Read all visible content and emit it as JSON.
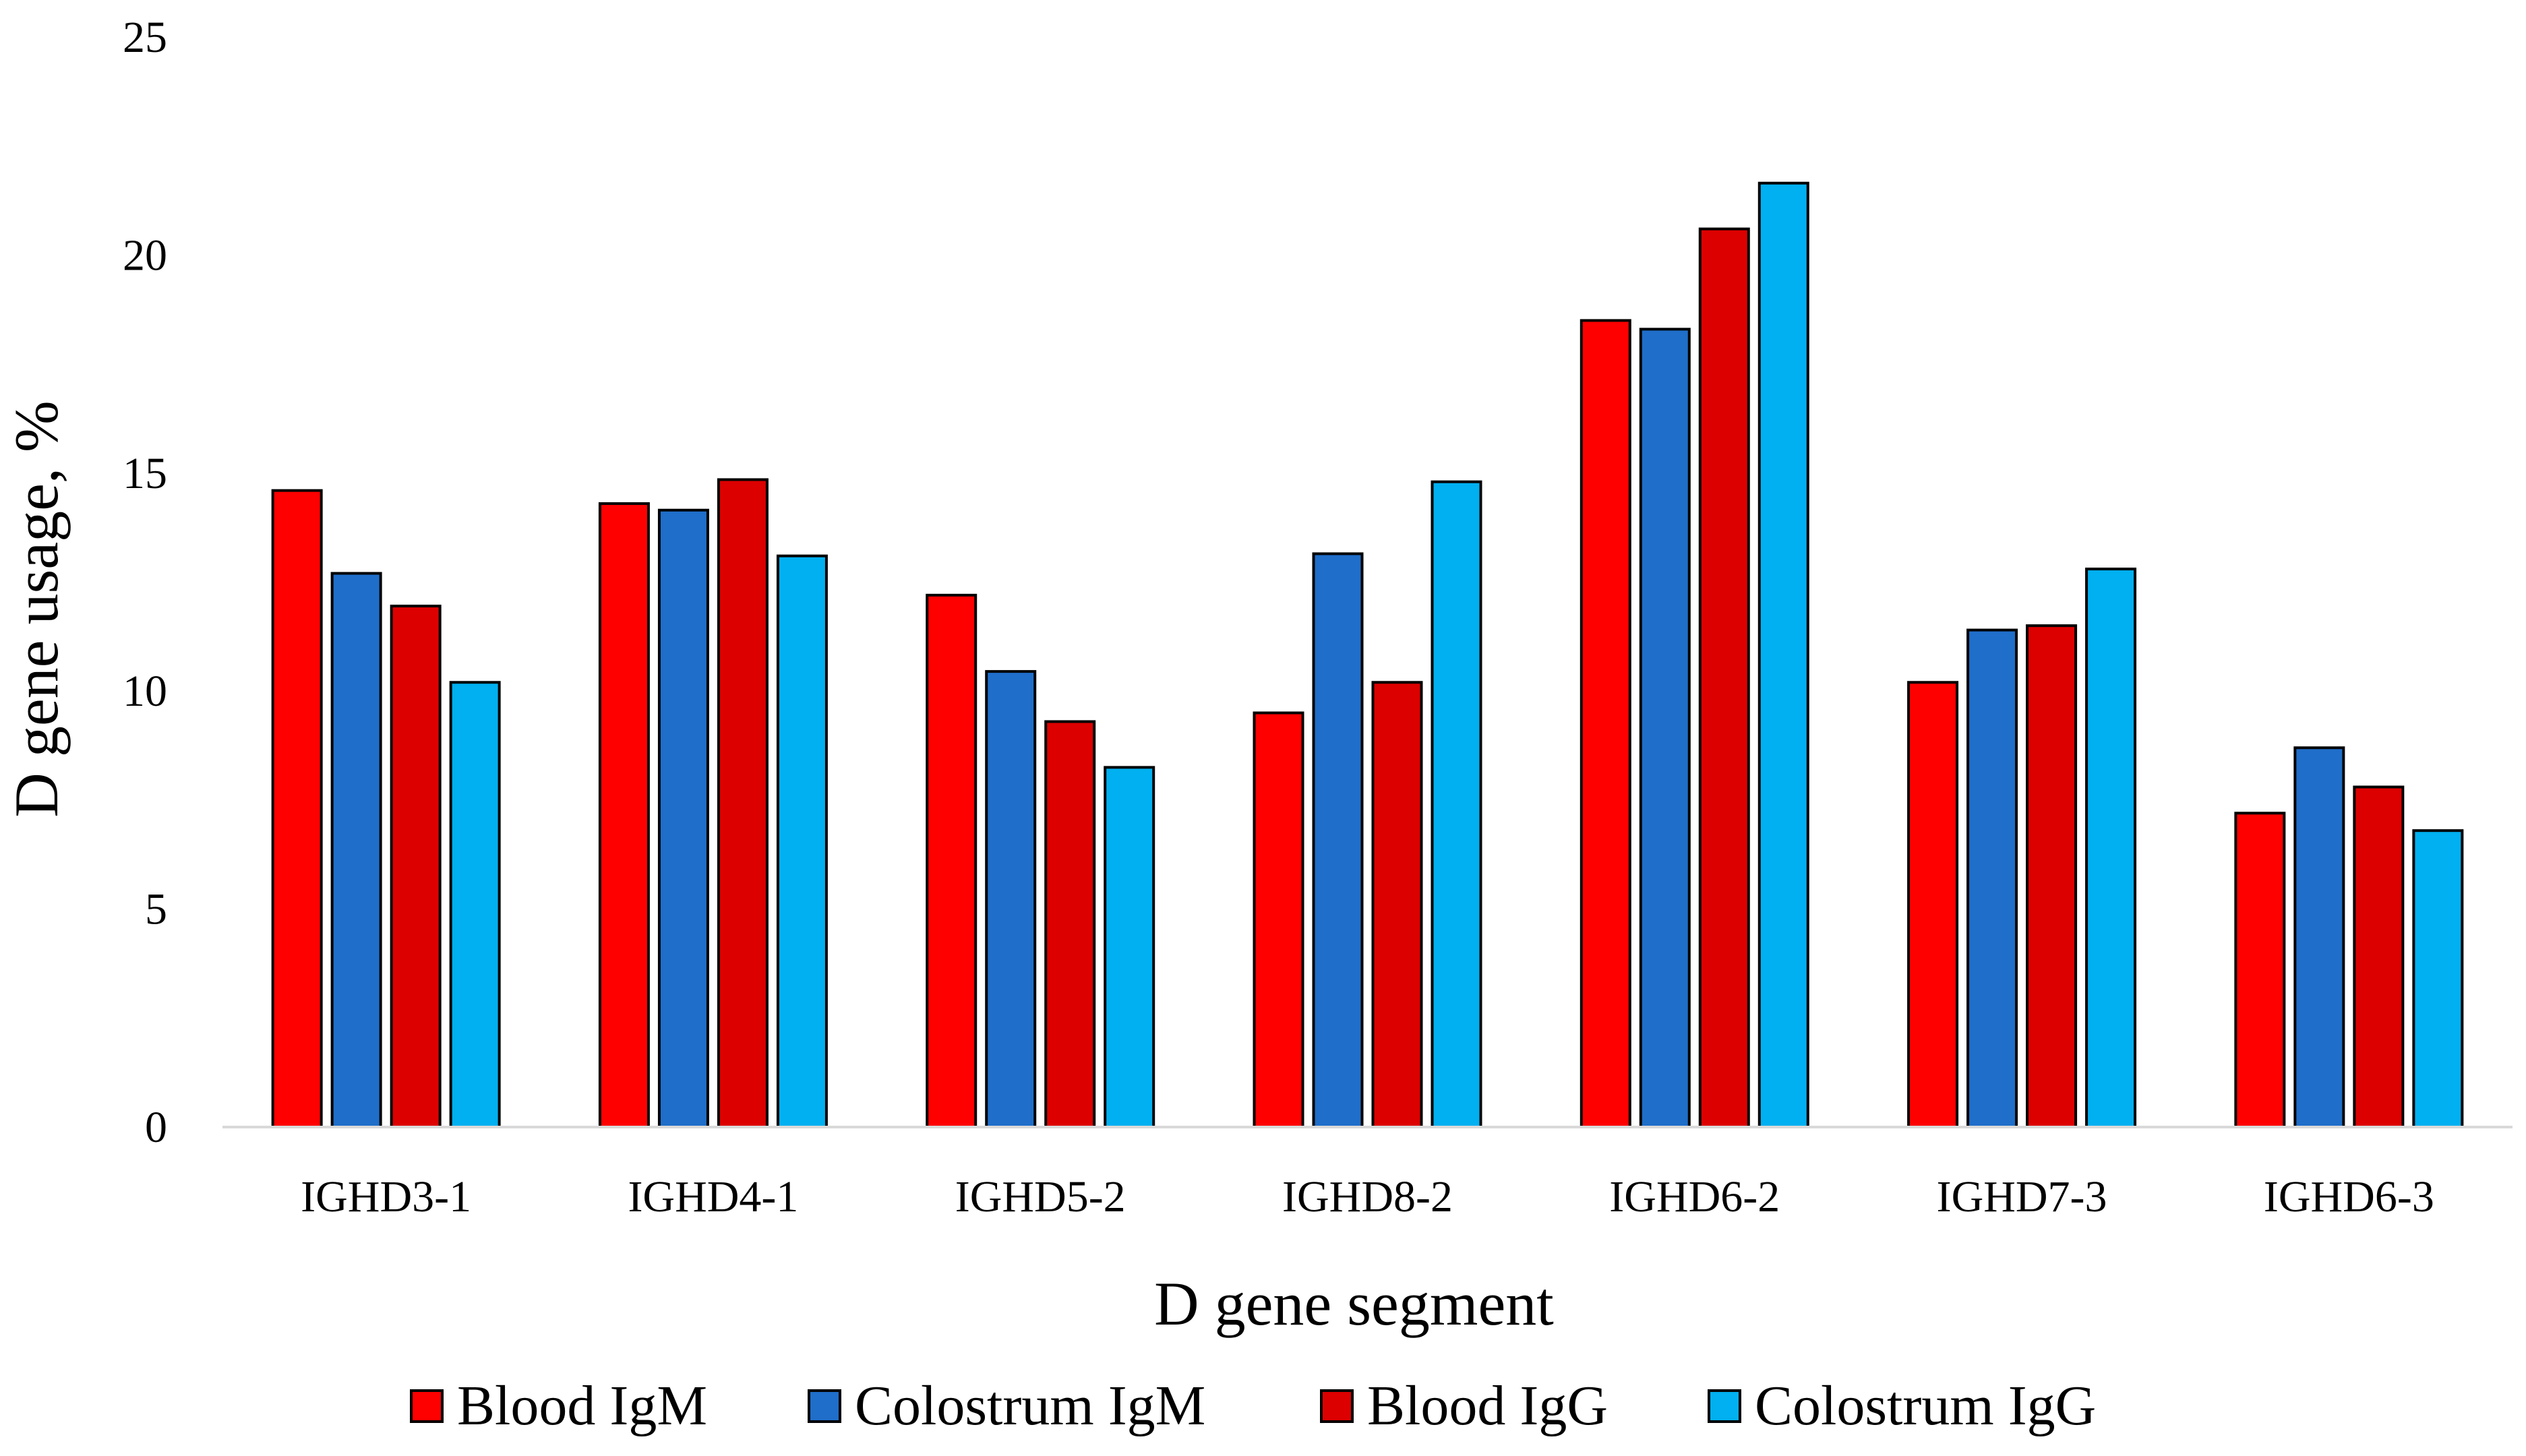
{
  "chart_data": {
    "type": "bar",
    "title": "",
    "xlabel": "D gene segment",
    "ylabel": "D gene usage, %",
    "ylim": [
      0,
      25
    ],
    "yticks": [
      "0",
      "5",
      "10",
      "15",
      "20",
      "25"
    ],
    "categories": [
      "IGHD3-1",
      "IGHD4-1",
      "IGHD5-2",
      "IGHD8-2",
      "IGHD6-2",
      "IGHD7-3",
      "IGHD6-3"
    ],
    "legend_position": "bottom",
    "grid": false,
    "series": [
      {
        "name": "Blood IgM",
        "color": "#ff0000",
        "values": [
          14.6,
          14.3,
          12.2,
          9.5,
          18.5,
          10.2,
          7.2
        ]
      },
      {
        "name": "Colostrum IgM",
        "color": "#1f6ec9",
        "values": [
          12.7,
          14.15,
          10.45,
          13.15,
          18.3,
          11.4,
          8.7
        ]
      },
      {
        "name": "Blood IgG",
        "color": "#dd0000",
        "values": [
          11.95,
          14.85,
          9.3,
          10.2,
          20.6,
          11.5,
          7.8
        ]
      },
      {
        "name": "Colostrum IgG",
        "color": "#00b0f0",
        "values": [
          10.2,
          13.1,
          8.25,
          14.8,
          21.65,
          12.8,
          6.8
        ]
      }
    ]
  }
}
